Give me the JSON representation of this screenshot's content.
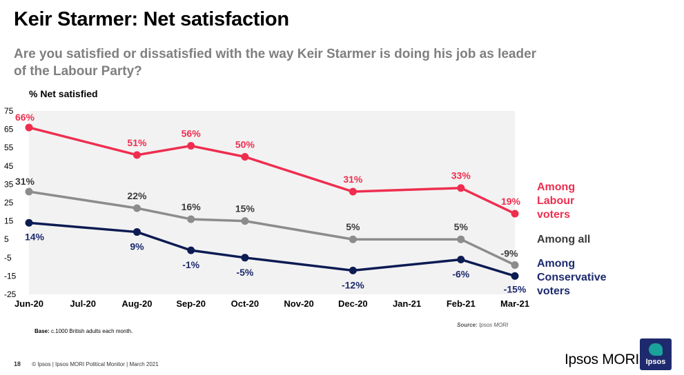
{
  "header": {
    "title": "Keir Starmer: Net satisfaction",
    "subtitle": "Are you satisfied or dissatisfied with the way Keir Starmer is doing his job as leader of the Labour Party?"
  },
  "chart_data": {
    "type": "line",
    "ylabel": "% Net satisfied",
    "ylim": [
      -25,
      75
    ],
    "yticks": [
      75,
      65,
      55,
      45,
      35,
      25,
      15,
      5,
      -5,
      -15,
      -25
    ],
    "categories": [
      "Jun-20",
      "Jul-20",
      "Aug-20",
      "Sep-20",
      "Oct-20",
      "Nov-20",
      "Dec-20",
      "Jan-21",
      "Feb-21",
      "Mar-21"
    ],
    "grid": false,
    "background": "#f2f2f2",
    "series": [
      {
        "name": "Among Labour voters",
        "color": "#ee2e4f",
        "values": [
          66,
          null,
          51,
          56,
          50,
          null,
          31,
          null,
          33,
          19
        ],
        "labels": [
          "66%",
          null,
          "51%",
          "56%",
          "50%",
          null,
          "31%",
          null,
          "33%",
          "19%"
        ]
      },
      {
        "name": "Among all",
        "color": "#8c8c8c",
        "values": [
          31,
          null,
          22,
          16,
          15,
          null,
          5,
          null,
          5,
          -9
        ],
        "labels": [
          "31%",
          null,
          "22%",
          "16%",
          "15%",
          null,
          "5%",
          null,
          "5%",
          "-9%"
        ]
      },
      {
        "name": "Among Conservative voters",
        "color": "#0d1b53",
        "values": [
          14,
          null,
          9,
          -1,
          -5,
          null,
          -12,
          null,
          -6,
          -15
        ],
        "labels": [
          "14%",
          null,
          "9%",
          "-1%",
          "-5%",
          null,
          "-12%",
          null,
          "-6%",
          "-15%"
        ]
      }
    ]
  },
  "legend": {
    "labour": "Among\nLabour\nvoters",
    "all": "Among all",
    "conservative": "Among\nConservative\nvoters"
  },
  "base_label": "Base:",
  "base_text": " c.1000 British adults each month.",
  "source_label": "Source:",
  "source_text": " Ipsos MORI",
  "footer": {
    "page_number": "18",
    "text": "© Ipsos | Ipsos MORI Political Monitor | March 2021"
  },
  "brand": "Ipsos MORI",
  "logo_text": "Ipsos"
}
